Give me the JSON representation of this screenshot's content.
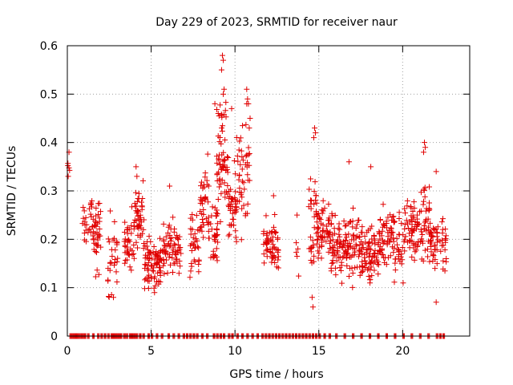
{
  "chart_data": {
    "type": "scatter",
    "title": "Day 229 of 2023, SRMTID for receiver naur",
    "xlabel": "GPS time / hours",
    "ylabel": "SRMTID / TECUs",
    "xlim": [
      0,
      24
    ],
    "ylim": [
      0,
      0.6
    ],
    "xticks": [
      0,
      5,
      10,
      15,
      20
    ],
    "yticks": [
      0,
      0.1,
      0.2,
      0.3,
      0.4,
      0.5,
      0.6
    ],
    "xtick_labels": [
      "0",
      "5",
      "10",
      "15",
      "20"
    ],
    "ytick_labels": [
      "0",
      "0.1",
      "0.2",
      "0.3",
      "0.4",
      "0.5",
      "0.6"
    ],
    "grid": true,
    "marker": "plus",
    "series_color": "#e00000",
    "zero_points_x": [
      0.15,
      0.25,
      0.35,
      0.45,
      0.6,
      0.75,
      0.85,
      1.0,
      1.2,
      1.5,
      1.8,
      2.0,
      2.2,
      2.4,
      2.6,
      2.75,
      2.85,
      2.95,
      3.05,
      3.15,
      3.35,
      3.5,
      3.7,
      3.8,
      3.9,
      4.0,
      4.1,
      4.3,
      4.5,
      4.8,
      5.0,
      5.3,
      5.6,
      6.0,
      6.3,
      6.6,
      6.9,
      7.1,
      7.3,
      7.5,
      7.7,
      8.0,
      8.3,
      8.7,
      8.9,
      9.1,
      9.3,
      9.6,
      9.8,
      10.1,
      10.4,
      10.7,
      11.0,
      11.3,
      11.6,
      11.8,
      12.0,
      12.2,
      12.4,
      12.6,
      12.8,
      13.0,
      13.2,
      13.4,
      13.6,
      13.8,
      14.0,
      14.2,
      14.4,
      14.6,
      14.8,
      15.0,
      15.3,
      15.6,
      16.0,
      16.5,
      17.0,
      17.5,
      18.0,
      18.5,
      19.0,
      19.5,
      20.0,
      20.5,
      21.0,
      21.5,
      22.0,
      22.2,
      22.4
    ],
    "clusters": [
      {
        "x": [
          0.0,
          0.2
        ],
        "y_mean": 0.34,
        "y_spread": 0.02,
        "n": 4
      },
      {
        "x": [
          0.9,
          1.5
        ],
        "y_mean": 0.24,
        "y_spread": 0.04,
        "n": 25
      },
      {
        "x": [
          1.5,
          2.0
        ],
        "y_mean": 0.21,
        "y_spread": 0.05,
        "n": 40
      },
      {
        "x": [
          2.4,
          3.0
        ],
        "y_mean": 0.17,
        "y_spread": 0.06,
        "n": 30
      },
      {
        "x": [
          3.4,
          4.0
        ],
        "y_mean": 0.2,
        "y_spread": 0.05,
        "n": 40
      },
      {
        "x": [
          4.0,
          4.6
        ],
        "y_mean": 0.24,
        "y_spread": 0.05,
        "n": 45
      },
      {
        "x": [
          4.6,
          5.6
        ],
        "y_mean": 0.15,
        "y_spread": 0.035,
        "n": 80
      },
      {
        "x": [
          5.6,
          6.8
        ],
        "y_mean": 0.18,
        "y_spread": 0.04,
        "n": 70
      },
      {
        "x": [
          7.3,
          7.9
        ],
        "y_mean": 0.18,
        "y_spread": 0.05,
        "n": 35
      },
      {
        "x": [
          7.9,
          8.4
        ],
        "y_mean": 0.3,
        "y_spread": 0.06,
        "n": 35
      },
      {
        "x": [
          8.4,
          9.0
        ],
        "y_mean": 0.22,
        "y_spread": 0.05,
        "n": 40
      },
      {
        "x": [
          8.9,
          9.6
        ],
        "y_mean": 0.38,
        "y_spread": 0.09,
        "n": 60
      },
      {
        "x": [
          9.6,
          10.1
        ],
        "y_mean": 0.27,
        "y_spread": 0.06,
        "n": 40
      },
      {
        "x": [
          10.1,
          10.9
        ],
        "y_mean": 0.33,
        "y_spread": 0.08,
        "n": 45
      },
      {
        "x": [
          11.7,
          12.6
        ],
        "y_mean": 0.18,
        "y_spread": 0.04,
        "n": 60
      },
      {
        "x": [
          13.6,
          13.8
        ],
        "y_mean": 0.17,
        "y_spread": 0.04,
        "n": 5
      },
      {
        "x": [
          14.4,
          14.9
        ],
        "y_mean": 0.22,
        "y_spread": 0.08,
        "n": 35
      },
      {
        "x": [
          14.9,
          15.6
        ],
        "y_mean": 0.22,
        "y_spread": 0.04,
        "n": 50
      },
      {
        "x": [
          15.6,
          16.6
        ],
        "y_mean": 0.18,
        "y_spread": 0.045,
        "n": 70
      },
      {
        "x": [
          16.6,
          17.6
        ],
        "y_mean": 0.19,
        "y_spread": 0.05,
        "n": 70
      },
      {
        "x": [
          17.6,
          18.6
        ],
        "y_mean": 0.17,
        "y_spread": 0.04,
        "n": 70
      },
      {
        "x": [
          18.6,
          19.5
        ],
        "y_mean": 0.2,
        "y_spread": 0.045,
        "n": 60
      },
      {
        "x": [
          19.5,
          20.1
        ],
        "y_mean": 0.18,
        "y_spread": 0.05,
        "n": 30
      },
      {
        "x": [
          20.1,
          21.0
        ],
        "y_mean": 0.22,
        "y_spread": 0.04,
        "n": 60
      },
      {
        "x": [
          21.0,
          21.6
        ],
        "y_mean": 0.24,
        "y_spread": 0.06,
        "n": 40
      },
      {
        "x": [
          21.6,
          22.6
        ],
        "y_mean": 0.19,
        "y_spread": 0.045,
        "n": 60
      }
    ],
    "outliers": [
      {
        "x": 9.25,
        "y": 0.58
      },
      {
        "x": 9.3,
        "y": 0.57
      },
      {
        "x": 9.2,
        "y": 0.55
      },
      {
        "x": 9.35,
        "y": 0.51
      },
      {
        "x": 9.3,
        "y": 0.5
      },
      {
        "x": 10.7,
        "y": 0.51
      },
      {
        "x": 10.75,
        "y": 0.49
      },
      {
        "x": 10.7,
        "y": 0.48
      },
      {
        "x": 10.8,
        "y": 0.48
      },
      {
        "x": 8.8,
        "y": 0.48
      },
      {
        "x": 9.0,
        "y": 0.46
      },
      {
        "x": 9.8,
        "y": 0.47
      },
      {
        "x": 14.75,
        "y": 0.43
      },
      {
        "x": 14.8,
        "y": 0.42
      },
      {
        "x": 14.7,
        "y": 0.41
      },
      {
        "x": 21.3,
        "y": 0.4
      },
      {
        "x": 21.35,
        "y": 0.39
      },
      {
        "x": 21.25,
        "y": 0.38
      },
      {
        "x": 10.9,
        "y": 0.45
      },
      {
        "x": 10.85,
        "y": 0.43
      },
      {
        "x": 4.1,
        "y": 0.35
      },
      {
        "x": 4.15,
        "y": 0.33
      },
      {
        "x": 14.6,
        "y": 0.08
      },
      {
        "x": 14.65,
        "y": 0.06
      },
      {
        "x": 22.0,
        "y": 0.07
      },
      {
        "x": 2.75,
        "y": 0.08
      },
      {
        "x": 5.2,
        "y": 0.09
      },
      {
        "x": 6.1,
        "y": 0.31
      },
      {
        "x": 16.8,
        "y": 0.36
      },
      {
        "x": 18.1,
        "y": 0.35
      },
      {
        "x": 12.3,
        "y": 0.29
      },
      {
        "x": 13.7,
        "y": 0.25
      },
      {
        "x": 22.0,
        "y": 0.34
      },
      {
        "x": 0.1,
        "y": 0.38
      },
      {
        "x": 0.05,
        "y": 0.33
      }
    ]
  }
}
